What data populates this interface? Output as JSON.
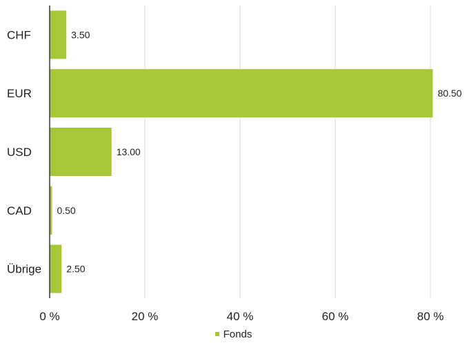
{
  "chart_data": {
    "type": "bar",
    "orientation": "horizontal",
    "categories": [
      "CHF",
      "EUR",
      "USD",
      "CAD",
      "Übrige"
    ],
    "series": [
      {
        "name": "Fonds",
        "values": [
          3.5,
          80.5,
          13.0,
          0.5,
          2.5
        ],
        "color": "#a6c737"
      }
    ],
    "value_labels": [
      "3.50",
      "80.50",
      "13.00",
      "0.50",
      "2.50"
    ],
    "xlim": [
      0,
      80
    ],
    "xticks": [
      0,
      20,
      40,
      60,
      80
    ],
    "xtick_labels": [
      "0 %",
      "20 %",
      "40 %",
      "60 %",
      "80 %"
    ],
    "grid": true,
    "legend_position": "bottom-center"
  }
}
